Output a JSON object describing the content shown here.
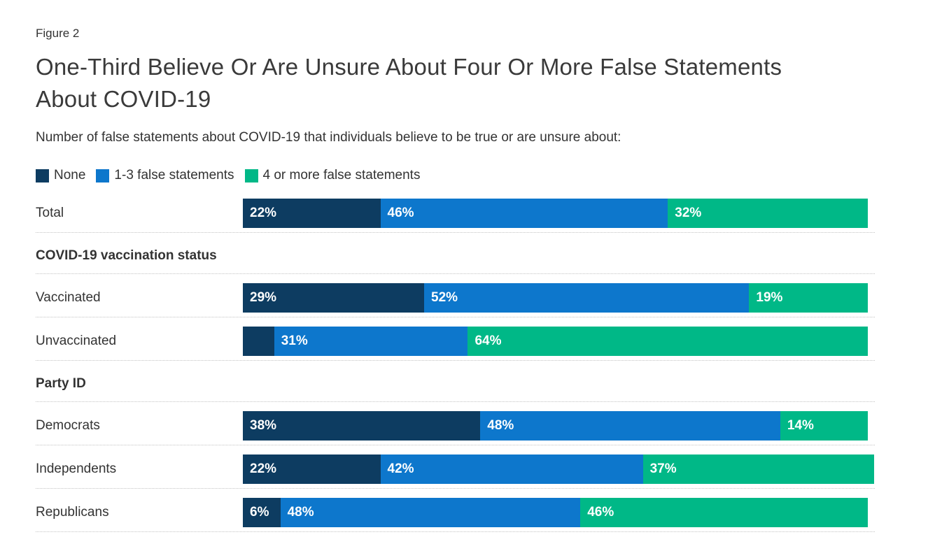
{
  "chart_data": {
    "type": "bar",
    "stacked": true,
    "orientation": "horizontal",
    "figure_label": "Figure 2",
    "title": "One-Third Believe Or Are Unsure About Four Or More False Statements About COVID-19",
    "subtitle": "Number of false statements about COVID-19 that individuals believe to be true or are unsure about:",
    "unit": "%",
    "x_max": 100,
    "grid": false,
    "legend_position": "top",
    "series": [
      {
        "name": "None",
        "color": "#0d3c61"
      },
      {
        "name": "1-3 false statements",
        "color": "#0d77cc"
      },
      {
        "name": "4 or more false statements",
        "color": "#00b887"
      }
    ],
    "groups": [
      {
        "header": null,
        "rows": [
          {
            "category": "Total",
            "values": [
              22,
              46,
              32
            ],
            "labels": [
              "22%",
              "46%",
              "32%"
            ]
          }
        ]
      },
      {
        "header": "COVID-19 vaccination status",
        "rows": [
          {
            "category": "Vaccinated",
            "values": [
              29,
              52,
              19
            ],
            "labels": [
              "29%",
              "52%",
              "19%"
            ]
          },
          {
            "category": "Unvaccinated",
            "values": [
              5,
              31,
              64
            ],
            "labels": [
              "",
              "31%",
              "64%"
            ]
          }
        ]
      },
      {
        "header": "Party ID",
        "rows": [
          {
            "category": "Democrats",
            "values": [
              38,
              48,
              14
            ],
            "labels": [
              "38%",
              "48%",
              "14%"
            ]
          },
          {
            "category": "Independents",
            "values": [
              22,
              42,
              37
            ],
            "labels": [
              "22%",
              "42%",
              "37%"
            ]
          },
          {
            "category": "Republicans",
            "values": [
              6,
              48,
              46
            ],
            "labels": [
              "6%",
              "48%",
              "46%"
            ]
          }
        ]
      }
    ]
  }
}
